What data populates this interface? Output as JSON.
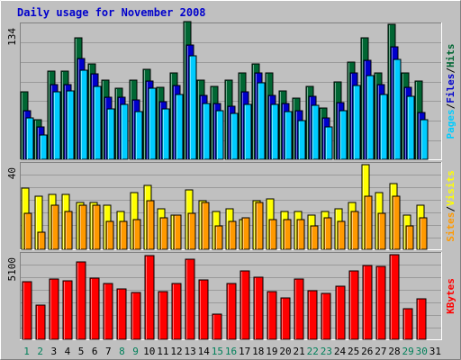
{
  "chart_data": {
    "type": "bar",
    "title": "Daily usage for November 2008",
    "categories": [
      "1",
      "2",
      "3",
      "4",
      "5",
      "6",
      "7",
      "8",
      "9",
      "10",
      "11",
      "12",
      "13",
      "14",
      "15",
      "16",
      "17",
      "18",
      "19",
      "20",
      "21",
      "22",
      "23",
      "24",
      "25",
      "26",
      "27",
      "28",
      "29",
      "30",
      "31"
    ],
    "weekend_days": [
      "1",
      "2",
      "8",
      "9",
      "15",
      "16",
      "22",
      "23",
      "29",
      "30"
    ],
    "panels": [
      {
        "id": "hits-files-pages",
        "ylabel_parts": [
          "Pages",
          "Files",
          "Hits"
        ],
        "ymax_label": "134",
        "ylim": [
          0,
          134
        ],
        "series": [
          {
            "name": "Hits",
            "color": "#006633",
            "values": [
              67,
              40,
              88,
              88,
              121,
              95,
              79,
              71,
              79,
              90,
              72,
              86,
              138,
              79,
              73,
              79,
              86,
              95,
              86,
              68,
              61,
              73,
              51,
              77,
              97,
              121,
              86,
              135,
              86,
              78
            ]
          },
          {
            "name": "Files",
            "color": "#0000cc",
            "values": [
              49,
              32,
              75,
              75,
              101,
              85,
              62,
              62,
              59,
              78,
              58,
              74,
              114,
              64,
              56,
              53,
              67,
              86,
              64,
              56,
              49,
              63,
              41,
              57,
              86,
              99,
              75,
              112,
              72,
              47
            ]
          },
          {
            "name": "Pages",
            "color": "#00ccff",
            "values": [
              41,
              24,
              67,
              68,
              89,
              73,
              50,
              55,
              48,
              71,
              50,
              65,
              103,
              56,
              49,
              46,
              55,
              76,
              55,
              48,
              39,
              54,
              32,
              49,
              74,
              84,
              65,
              100,
              63,
              40
            ]
          }
        ]
      },
      {
        "id": "visits-sites",
        "ylabel_parts": [
          "Sites",
          "Visits"
        ],
        "ymax_label": "40",
        "ylim": [
          0,
          40
        ],
        "series": [
          {
            "name": "Visits",
            "color": "#ffff00",
            "values": [
              29,
              25,
              26,
              26,
              22,
              22,
              21,
              18,
              27,
              30,
              19,
              16,
              28,
              23,
              18,
              19,
              14,
              23,
              24,
              18,
              18,
              16,
              18,
              19,
              22,
              40,
              27,
              31,
              16,
              21
            ]
          },
          {
            "name": "Sites",
            "color": "#ff9900",
            "values": [
              17,
              8,
              21,
              18,
              21,
              21,
              13,
              13,
              14,
              23,
              15,
              16,
              17,
              22,
              11,
              13,
              15,
              22,
              14,
              14,
              14,
              11,
              15,
              13,
              18,
              25,
              17,
              25,
              11,
              15
            ]
          }
        ]
      },
      {
        "id": "kbytes",
        "ylabel_parts": [
          "KBytes"
        ],
        "ymax_label": "5100",
        "ylim": [
          0,
          5100
        ],
        "series": [
          {
            "name": "KBytes",
            "color": "#ff0000",
            "values": [
              3450,
              2050,
              3650,
              3550,
              4680,
              3710,
              3340,
              3060,
              2800,
              5060,
              2890,
              3390,
              4810,
              3580,
              1500,
              3340,
              4140,
              3750,
              2860,
              2470,
              3660,
              2910,
              2780,
              3180,
              4150,
              4470,
              4370,
              5100,
              1850,
              2430
            ]
          }
        ]
      }
    ]
  }
}
